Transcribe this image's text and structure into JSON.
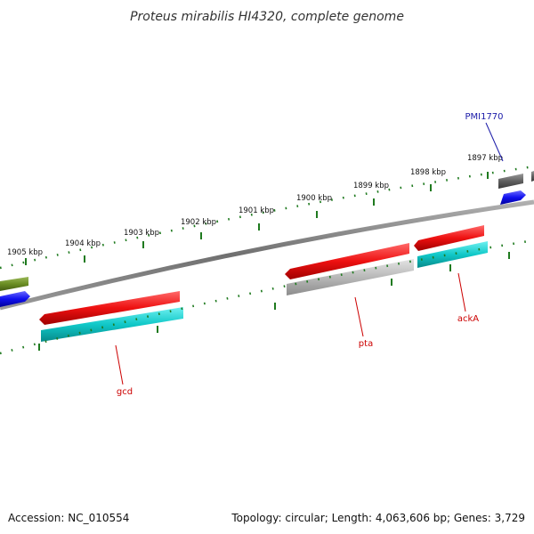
{
  "title": "Proteus mirabilis HI4320, complete genome",
  "footer": {
    "accession": "Accession: NC_010554",
    "summary": "Topology: circular; Length: 4,063,606 bp; Genes: 3,729"
  },
  "ticks": [
    "1905 kbp",
    "1904 kbp",
    "1903 kbp",
    "1902 kbp",
    "1901 kbp",
    "1900 kbp",
    "1899 kbp",
    "1898 kbp",
    "1897 kbp"
  ],
  "genes": {
    "gcd": "gcd",
    "pta": "pta",
    "ackA": "ackA",
    "pmi1770": "PMI1770"
  },
  "colors": {
    "backbone": "#808080",
    "tick": "#1f7a1f",
    "cds_red": "#ee1111",
    "cds_cyan": "#10c8c8",
    "cds_gray": "#b8b8b8",
    "cds_dark_gray": "#606060",
    "cds_blue": "#1010ee",
    "cds_olive": "#6b8e23"
  }
}
